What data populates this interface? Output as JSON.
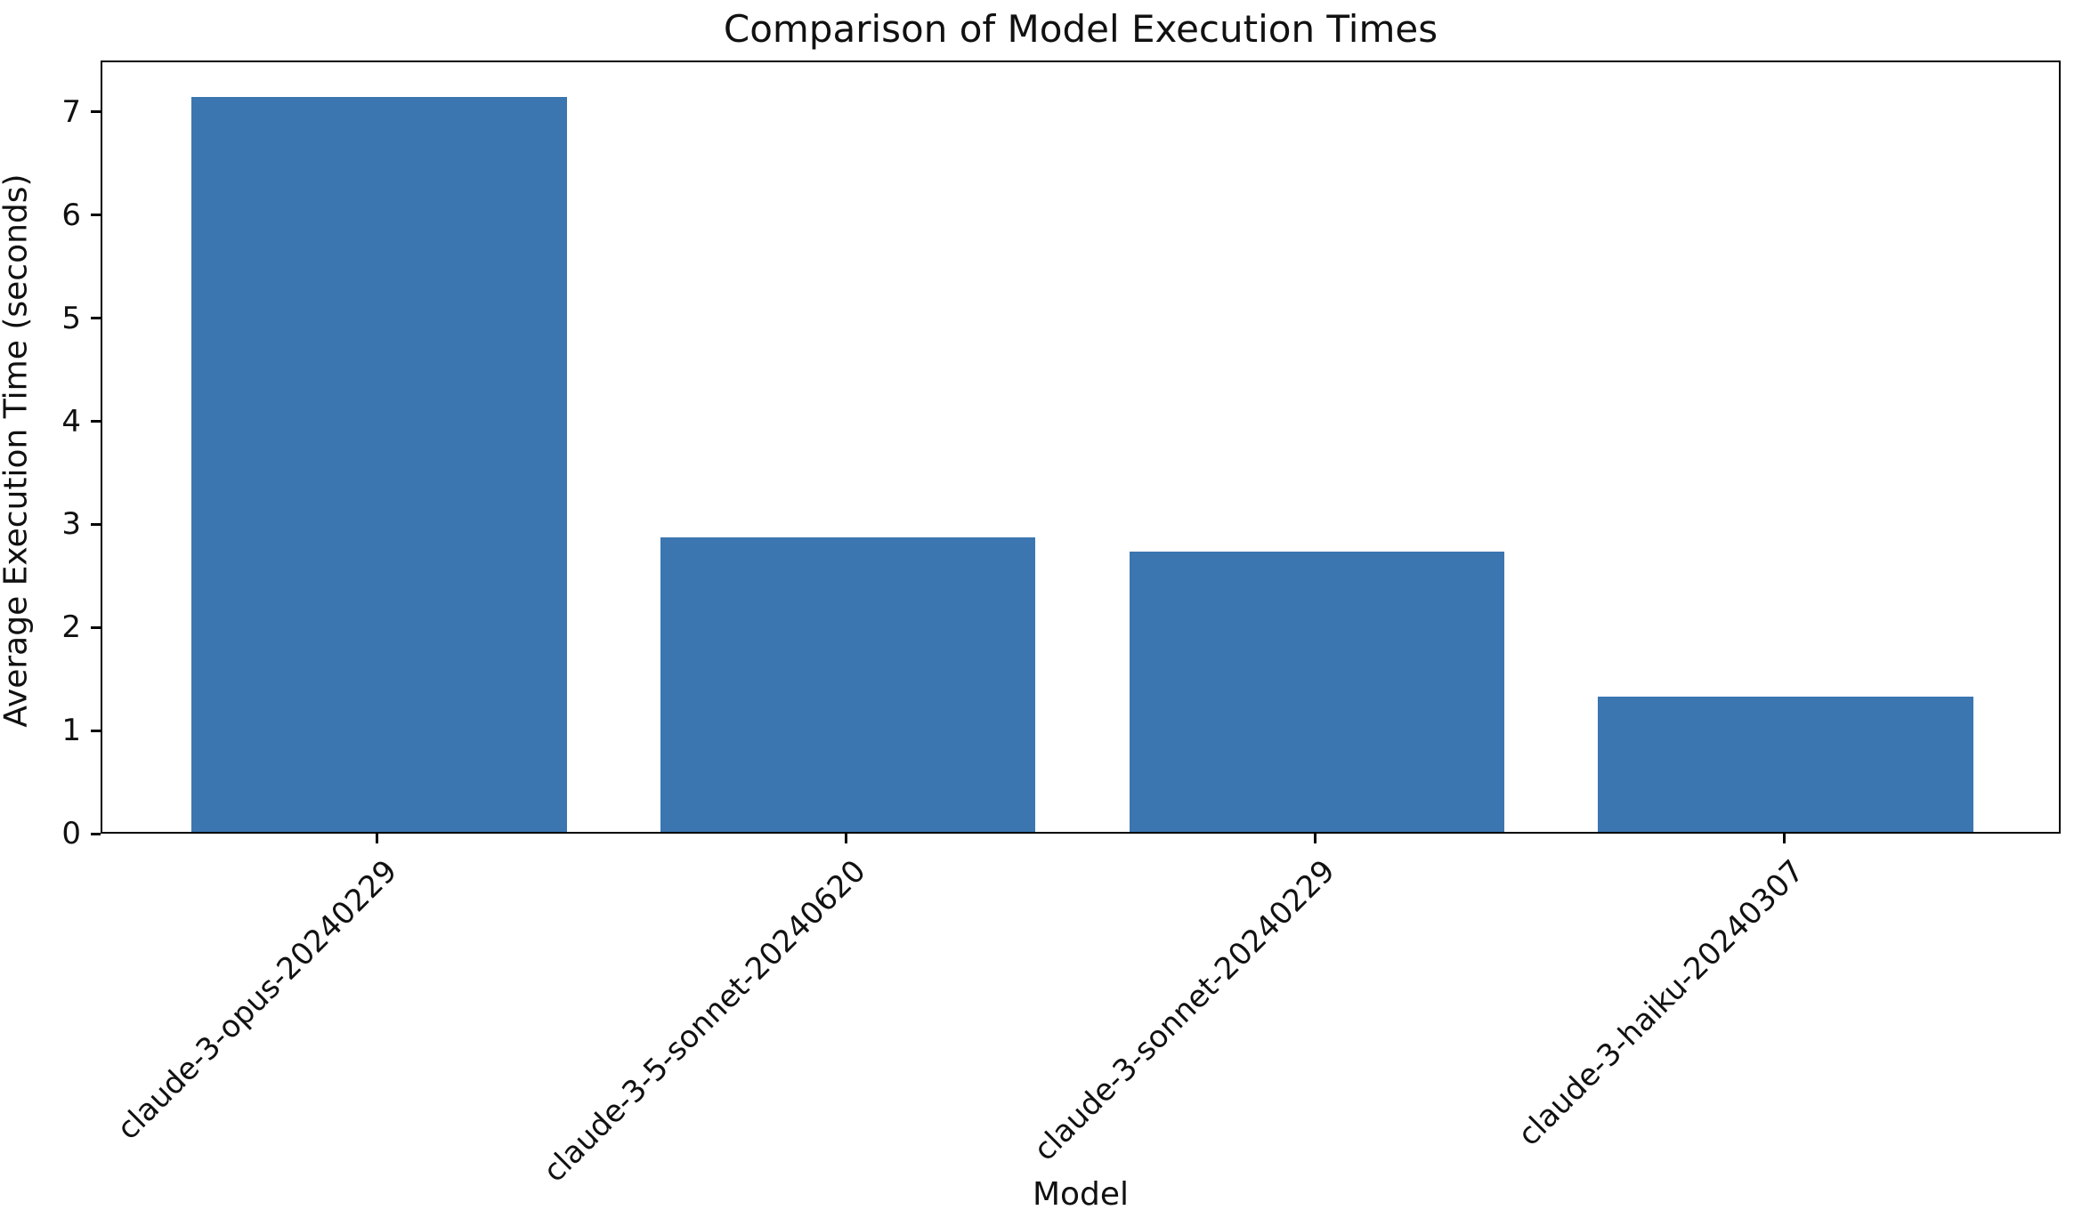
{
  "figure": {
    "background_color": "#ffffff",
    "axis_color": "#000000",
    "text_color": "#111111"
  },
  "chart_data": {
    "type": "bar",
    "title": "Comparison of Model Execution Times",
    "xlabel": "Model",
    "ylabel": "Average Execution Time (seconds)",
    "categories": [
      "claude-3-opus-20240229",
      "claude-3-5-sonnet-20240620",
      "claude-3-sonnet-20240229",
      "claude-3-haiku-20240307"
    ],
    "values": [
      7.13,
      2.86,
      2.72,
      1.31
    ],
    "bar_color": "#3b76b1",
    "ylim": [
      0,
      7.5
    ],
    "yticks": [
      0,
      1,
      2,
      3,
      4,
      5,
      6,
      7
    ],
    "grid": false,
    "legend": null,
    "x_tick_rotation_deg": 45
  }
}
